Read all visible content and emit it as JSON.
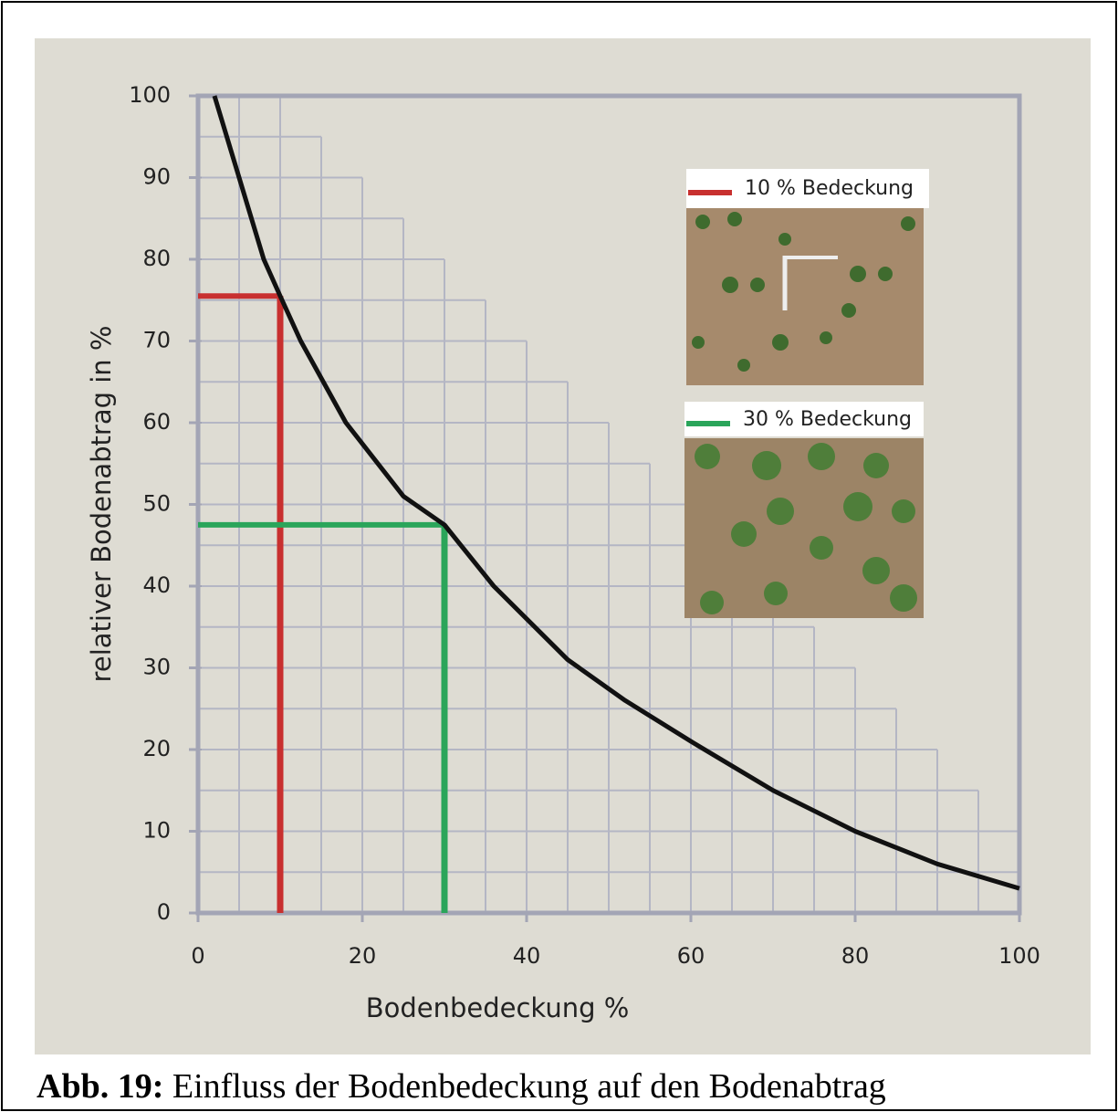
{
  "chart_data": {
    "type": "line",
    "x_label": "Bodenbedeckung %",
    "y_label": "relativer Bodenabtrag in %",
    "x": [
      2,
      5,
      8,
      10,
      12.5,
      18,
      25,
      30,
      36,
      45,
      52,
      60,
      70,
      80,
      90,
      100
    ],
    "series": [
      {
        "color": "#111111",
        "values": [
          100,
          90,
          80,
          75.5,
          70,
          60,
          51,
          47.5,
          40,
          31,
          26,
          21,
          15,
          10,
          6,
          3
        ]
      }
    ],
    "markers": [
      {
        "name": "10 % Bedeckung",
        "color": "#c8302f",
        "x": 10,
        "y": 75.5
      },
      {
        "name": "30 % Bedeckung",
        "color": "#2aa55a",
        "x": 30,
        "y": 47.5
      }
    ],
    "xlim": [
      0,
      100
    ],
    "xticks": [
      0,
      20,
      40,
      60,
      80,
      100
    ],
    "ylim": [
      0,
      100
    ],
    "yticks": [
      0,
      10,
      20,
      30,
      40,
      50,
      60,
      70,
      80,
      90,
      100
    ],
    "grid": true
  },
  "caption": {
    "label": "Abb. 19:",
    "text": "Einfluss der Bodenbedeckung auf den Bodenabtrag"
  }
}
